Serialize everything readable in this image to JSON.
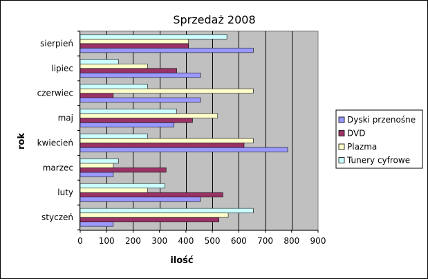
{
  "chart_data": {
    "type": "bar",
    "orientation": "horizontal",
    "title": "Sprzedaż 2008",
    "xlabel": "ilość",
    "ylabel": "rok",
    "categories": [
      "styczeń",
      "luty",
      "marzec",
      "kwiecień",
      "maj",
      "czerwiec",
      "lipiec",
      "sierpień"
    ],
    "xlim": [
      0,
      900
    ],
    "xticks": [
      0,
      100,
      200,
      300,
      400,
      500,
      600,
      700,
      800,
      900
    ],
    "grid": "vertical",
    "legend_position": "right",
    "plot_background": "#c0c0c0",
    "series": [
      {
        "name": "Dyski przenośne",
        "color": "#9999ff",
        "values": [
          125,
          455,
          125,
          785,
          355,
          455,
          455,
          655
        ]
      },
      {
        "name": "DVD",
        "color": "#993366",
        "values": [
          525,
          540,
          325,
          620,
          425,
          125,
          365,
          410
        ]
      },
      {
        "name": "Plazma",
        "color": "#ffffcc",
        "values": [
          560,
          255,
          125,
          655,
          520,
          655,
          255,
          410
        ]
      },
      {
        "name": "Tunery cyfrowe",
        "color": "#ccffff",
        "values": [
          655,
          320,
          145,
          255,
          365,
          255,
          145,
          555
        ]
      }
    ]
  }
}
